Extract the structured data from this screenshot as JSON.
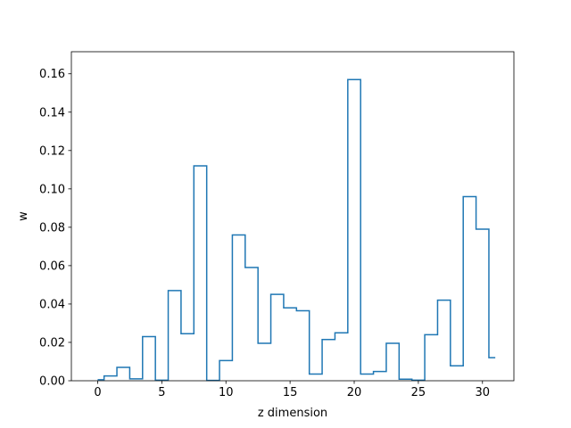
{
  "chart_data": {
    "type": "step",
    "title": "",
    "xlabel": "z dimension",
    "ylabel": "w",
    "xlim": [
      -2.05,
      32.45
    ],
    "ylim": [
      0,
      0.1715
    ],
    "xticks": [
      0,
      5,
      10,
      15,
      20,
      25,
      30
    ],
    "yticks": [
      0.0,
      0.02,
      0.04,
      0.06,
      0.08,
      0.1,
      0.12,
      0.14,
      0.16
    ],
    "ytick_labels": [
      "0.00",
      "0.02",
      "0.04",
      "0.06",
      "0.08",
      "0.10",
      "0.12",
      "0.14",
      "0.16"
    ],
    "grid": false,
    "line_color": "#1f77b4",
    "step_where": "mid",
    "x": [
      0,
      1,
      2,
      3,
      4,
      5,
      6,
      7,
      8,
      9,
      10,
      11,
      12,
      13,
      14,
      15,
      16,
      17,
      18,
      19,
      20,
      21,
      22,
      23,
      24,
      25,
      26,
      27,
      28,
      29,
      30,
      31
    ],
    "values": [
      0.0005,
      0.0025,
      0.007,
      0.001,
      0.023,
      0.0003,
      0.047,
      0.0245,
      0.112,
      0.0002,
      0.0105,
      0.076,
      0.059,
      0.0195,
      0.045,
      0.038,
      0.0365,
      0.0035,
      0.0215,
      0.025,
      0.157,
      0.0035,
      0.0048,
      0.0195,
      0.0008,
      0.0003,
      0.024,
      0.042,
      0.0078,
      0.096,
      0.079,
      0.012
    ]
  }
}
